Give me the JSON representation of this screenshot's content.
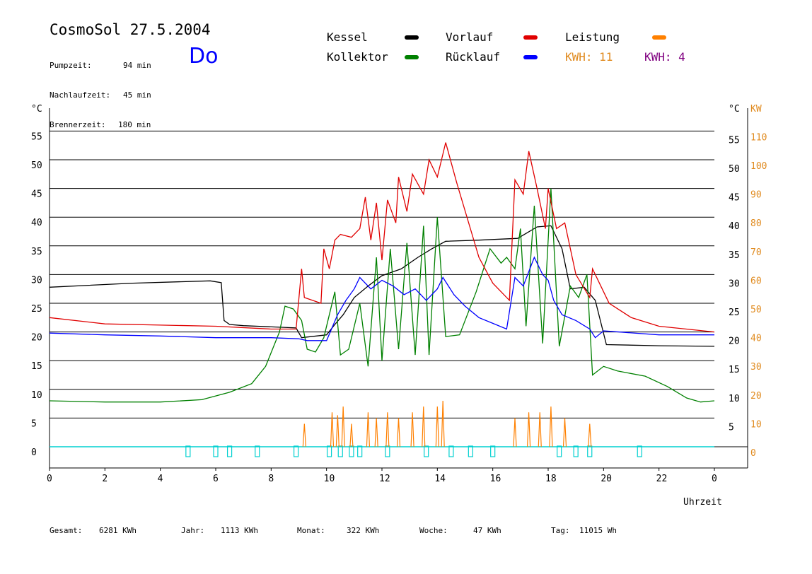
{
  "header": {
    "title": "CosmoSol 27.5.2004",
    "day": "Do",
    "stats": [
      {
        "label": "Pumpzeit:",
        "value": "94 min"
      },
      {
        "label": "Nachlaufzeit:",
        "value": "45 min"
      },
      {
        "label": "Brennerzeit:",
        "value": "180 min"
      }
    ]
  },
  "legend": {
    "items": [
      {
        "label": "Kessel",
        "color": "#000000"
      },
      {
        "label": "Kollektor",
        "color": "#008000"
      },
      {
        "label": "Vorlauf",
        "color": "#e00000"
      },
      {
        "label": "Rücklauf",
        "color": "#0000ff"
      },
      {
        "label": "Leistung",
        "color": "#ff8000"
      }
    ],
    "kwh": [
      {
        "text": "KWH: 11",
        "color": "#e08a1e"
      },
      {
        "text": "KWH: 4",
        "color": "#800080"
      }
    ]
  },
  "footer": [
    {
      "label": "Gesamt:",
      "value": "6281 KWh"
    },
    {
      "label": "Jahr:",
      "value": "1113 KWh"
    },
    {
      "label": "Monat:",
      "value": "322 KWh"
    },
    {
      "label": "Woche:",
      "value": "47 KWh"
    },
    {
      "label": "Tag:",
      "value": "11015 Wh"
    }
  ],
  "chart_data": {
    "type": "line",
    "xlabel": "Uhrzeit",
    "x_ticks": [
      "0",
      "2",
      "4",
      "6",
      "8",
      "10",
      "12",
      "14",
      "16",
      "18",
      "20",
      "22",
      "0"
    ],
    "xlim": [
      0,
      24
    ],
    "y_left": {
      "unit": "°C",
      "ticks": [
        0,
        5,
        10,
        15,
        20,
        25,
        30,
        35,
        40,
        45,
        50,
        55
      ],
      "range": [
        0,
        55
      ]
    },
    "y_right_temp": {
      "unit": "°C",
      "ticks": [
        5,
        10,
        15,
        20,
        25,
        30,
        35,
        40,
        45,
        50,
        55
      ]
    },
    "y_right_power": {
      "unit": "KW",
      "ticks": [
        0,
        10,
        20,
        30,
        40,
        50,
        60,
        70,
        80,
        90,
        100,
        110
      ],
      "color": "#e08a1e"
    },
    "grid": true,
    "series": [
      {
        "name": "Kessel",
        "color": "#000000",
        "points": [
          [
            0,
            27.8
          ],
          [
            3,
            28.5
          ],
          [
            5.8,
            28.9
          ],
          [
            6.2,
            28.6
          ],
          [
            6.3,
            22
          ],
          [
            6.5,
            21.3
          ],
          [
            7,
            21.1
          ],
          [
            8.9,
            20.7
          ],
          [
            9.1,
            19
          ],
          [
            10,
            19.5
          ],
          [
            10.3,
            21.3
          ],
          [
            10.6,
            23
          ],
          [
            11,
            26
          ],
          [
            11.5,
            28
          ],
          [
            12,
            29.8
          ],
          [
            12.7,
            31
          ],
          [
            13.3,
            33
          ],
          [
            13.8,
            34.5
          ],
          [
            14.3,
            35.8
          ],
          [
            15.5,
            36
          ],
          [
            16.9,
            36.3
          ],
          [
            17.6,
            38.3
          ],
          [
            18.1,
            38.5
          ],
          [
            18.5,
            34.5
          ],
          [
            18.8,
            27.5
          ],
          [
            19.3,
            27.8
          ],
          [
            19.7,
            25.5
          ],
          [
            20.1,
            17.8
          ],
          [
            22,
            17.6
          ],
          [
            24,
            17.5
          ]
        ]
      },
      {
        "name": "Kollektor",
        "color": "#008000",
        "points": [
          [
            0,
            8
          ],
          [
            2,
            7.8
          ],
          [
            4,
            7.8
          ],
          [
            5.5,
            8.2
          ],
          [
            6.5,
            9.5
          ],
          [
            7.3,
            11
          ],
          [
            7.8,
            14
          ],
          [
            8.3,
            20
          ],
          [
            8.5,
            24.5
          ],
          [
            8.8,
            24
          ],
          [
            9.1,
            22
          ],
          [
            9.3,
            17
          ],
          [
            9.6,
            16.5
          ],
          [
            9.9,
            19
          ],
          [
            10.3,
            27
          ],
          [
            10.5,
            16
          ],
          [
            10.8,
            17
          ],
          [
            11.2,
            25
          ],
          [
            11.5,
            14
          ],
          [
            11.8,
            33
          ],
          [
            12,
            15
          ],
          [
            12.3,
            34.5
          ],
          [
            12.6,
            17
          ],
          [
            12.9,
            35.5
          ],
          [
            13.2,
            16
          ],
          [
            13.5,
            38.5
          ],
          [
            13.7,
            16
          ],
          [
            14,
            40
          ],
          [
            14.3,
            19.2
          ],
          [
            14.8,
            19.5
          ],
          [
            15.4,
            27
          ],
          [
            15.9,
            34.5
          ],
          [
            16.3,
            32
          ],
          [
            16.5,
            33
          ],
          [
            16.8,
            31
          ],
          [
            17,
            38
          ],
          [
            17.2,
            21
          ],
          [
            17.5,
            42
          ],
          [
            17.8,
            18
          ],
          [
            18.1,
            45
          ],
          [
            18.4,
            17.5
          ],
          [
            18.8,
            28
          ],
          [
            19.1,
            26
          ],
          [
            19.4,
            30
          ],
          [
            19.6,
            12.5
          ],
          [
            20,
            14
          ],
          [
            20.5,
            13.2
          ],
          [
            21.5,
            12.3
          ],
          [
            22.3,
            10.5
          ],
          [
            23,
            8.5
          ],
          [
            23.5,
            7.8
          ],
          [
            24,
            8
          ]
        ]
      },
      {
        "name": "Vorlauf",
        "color": "#e00000",
        "points": [
          [
            0,
            22.5
          ],
          [
            2,
            21.4
          ],
          [
            4,
            21.2
          ],
          [
            6,
            21
          ],
          [
            8,
            20.5
          ],
          [
            8.9,
            20.5
          ],
          [
            9.1,
            31
          ],
          [
            9.2,
            26
          ],
          [
            9.8,
            25
          ],
          [
            9.9,
            34.5
          ],
          [
            10.1,
            31
          ],
          [
            10.3,
            36
          ],
          [
            10.5,
            37
          ],
          [
            10.9,
            36.5
          ],
          [
            11.2,
            38
          ],
          [
            11.4,
            43.5
          ],
          [
            11.6,
            36
          ],
          [
            11.8,
            42.5
          ],
          [
            12,
            32.5
          ],
          [
            12.2,
            43
          ],
          [
            12.5,
            39
          ],
          [
            12.6,
            47
          ],
          [
            12.9,
            41
          ],
          [
            13.1,
            47.5
          ],
          [
            13.5,
            44
          ],
          [
            13.7,
            50
          ],
          [
            14,
            47
          ],
          [
            14.2,
            51
          ],
          [
            14.3,
            53
          ],
          [
            14.7,
            46
          ],
          [
            15.5,
            33
          ],
          [
            16,
            28.5
          ],
          [
            16.6,
            25.5
          ],
          [
            16.8,
            46.5
          ],
          [
            17.1,
            44
          ],
          [
            17.3,
            51.5
          ],
          [
            17.6,
            45
          ],
          [
            17.9,
            38
          ],
          [
            18,
            45
          ],
          [
            18.3,
            38
          ],
          [
            18.6,
            39
          ],
          [
            19,
            30
          ],
          [
            19.5,
            26
          ],
          [
            19.6,
            31
          ],
          [
            20.2,
            25
          ],
          [
            21,
            22.5
          ],
          [
            22,
            21
          ],
          [
            24,
            20
          ]
        ]
      },
      {
        "name": "Rücklauf",
        "color": "#0000ff",
        "points": [
          [
            0,
            19.8
          ],
          [
            2,
            19.5
          ],
          [
            4,
            19.3
          ],
          [
            6,
            19
          ],
          [
            8,
            19
          ],
          [
            9,
            18.8
          ],
          [
            9.3,
            18.5
          ],
          [
            10,
            18.5
          ],
          [
            10.4,
            23
          ],
          [
            10.7,
            25.5
          ],
          [
            11,
            27.5
          ],
          [
            11.2,
            29.5
          ],
          [
            11.6,
            27.5
          ],
          [
            12,
            29
          ],
          [
            12.4,
            28
          ],
          [
            12.8,
            26.5
          ],
          [
            13.2,
            27.5
          ],
          [
            13.6,
            25.5
          ],
          [
            14,
            27.5
          ],
          [
            14.2,
            29.5
          ],
          [
            14.6,
            26.5
          ],
          [
            15,
            24.5
          ],
          [
            15.5,
            22.5
          ],
          [
            16,
            21.5
          ],
          [
            16.5,
            20.5
          ],
          [
            16.8,
            29.5
          ],
          [
            17.1,
            28
          ],
          [
            17.5,
            33
          ],
          [
            17.8,
            30
          ],
          [
            18,
            29
          ],
          [
            18.2,
            25.5
          ],
          [
            18.5,
            23
          ],
          [
            19,
            22
          ],
          [
            19.5,
            20.5
          ],
          [
            19.7,
            19
          ],
          [
            20,
            20.2
          ],
          [
            22,
            19.5
          ],
          [
            24,
            19.5
          ]
        ]
      },
      {
        "name": "Leistung",
        "color": "#ff8000",
        "spikes": [
          [
            9.2,
            8
          ],
          [
            10.2,
            12
          ],
          [
            10.4,
            11
          ],
          [
            10.6,
            14
          ],
          [
            10.9,
            8
          ],
          [
            11.5,
            12
          ],
          [
            11.8,
            10
          ],
          [
            12.2,
            12
          ],
          [
            12.6,
            10
          ],
          [
            13.1,
            12
          ],
          [
            13.5,
            14
          ],
          [
            14,
            14
          ],
          [
            14.2,
            16
          ],
          [
            16.8,
            10
          ],
          [
            17.3,
            12
          ],
          [
            17.7,
            12
          ],
          [
            18.1,
            14
          ],
          [
            18.6,
            10
          ],
          [
            19.5,
            8
          ]
        ]
      }
    ],
    "cyan_baseline_y": 0,
    "pulses_x": [
      5,
      6,
      6.5,
      7.5,
      8.9,
      10.1,
      10.5,
      10.9,
      11.2,
      12.2,
      13.6,
      14.5,
      15.2,
      16,
      18.4,
      19,
      19.5,
      21.3
    ]
  }
}
